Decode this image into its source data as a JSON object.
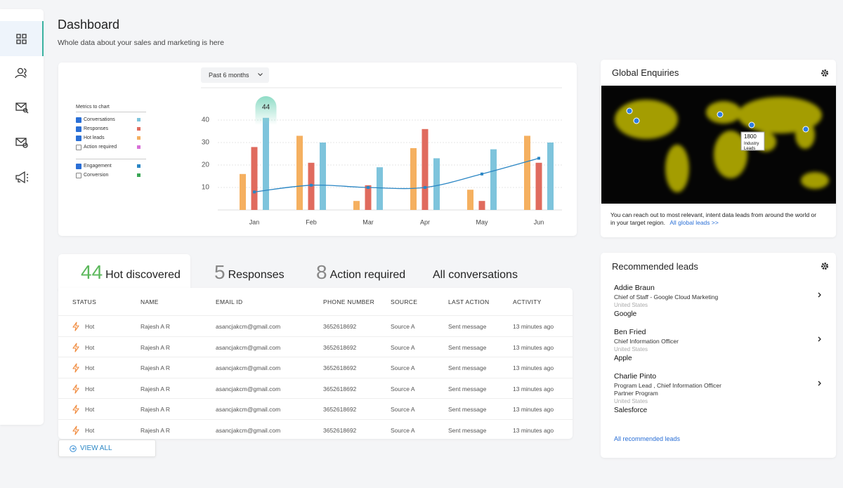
{
  "header": {
    "title": "Dashboard",
    "subtitle": "Whole data about your sales and marketing is here"
  },
  "chart_panel": {
    "period": "Past 6 months",
    "metrics_title": "Metrics to chart"
  },
  "chart_data": {
    "type": "bar",
    "categories": [
      "Jan",
      "Feb",
      "Mar",
      "Apr",
      "May",
      "Jun"
    ],
    "series": [
      {
        "name": "Conversations",
        "color": "#7ec4dc",
        "checked": true,
        "mark": "bar",
        "values": [
          41,
          30,
          19,
          23,
          27,
          30
        ]
      },
      {
        "name": "Responses",
        "color": "#e06b5e",
        "checked": true,
        "mark": "bar",
        "values": [
          28,
          21,
          11,
          36,
          4,
          21
        ]
      },
      {
        "name": "Hot leads",
        "color": "#f5b060",
        "checked": true,
        "mark": "bar",
        "values": [
          16,
          33,
          4,
          27.5,
          9,
          33
        ]
      },
      {
        "name": "Action required",
        "color": "#d86fd8",
        "checked": false
      },
      {
        "name": "Engagement",
        "color": "#2a86c4",
        "checked": true,
        "mark": "line",
        "values": [
          8,
          11,
          10,
          10,
          16,
          23
        ]
      },
      {
        "name": "Conversion",
        "color": "#3aa655",
        "checked": false
      }
    ],
    "annotation": "44",
    "ylim": [
      0,
      45
    ],
    "yticks": [
      10,
      20,
      30,
      40
    ],
    "grid": true
  },
  "map": {
    "title": "Global Enquiries",
    "tooltip_value": 1800,
    "tooltip_label": "Industry Leads",
    "description": "You can reach out to most relevant, intent data leads from around the world or in your target region.",
    "link": "All global leads >>"
  },
  "tabs": [
    {
      "count": 44,
      "label": "Hot discovered"
    },
    {
      "count": 5,
      "label": "Responses"
    },
    {
      "count": 8,
      "label": "Action required"
    },
    {
      "label": "All conversations"
    }
  ],
  "table": {
    "columns": [
      "STATUS",
      "NAME",
      "EMAIL ID",
      "PHONE NUMBER",
      "SOURCE",
      "LAST ACTION",
      "ACTIVITY"
    ],
    "rows": [
      [
        "Hot",
        "Rajesh A R",
        "asancjakcm@gmail.com",
        "3652618692",
        "Source A",
        "Sent message",
        "13 minutes ago"
      ],
      [
        "Hot",
        "Rajesh A R",
        "asancjakcm@gmail.com",
        "3652618692",
        "Source A",
        "Sent message",
        "13 minutes ago"
      ],
      [
        "Hot",
        "Rajesh A R",
        "asancjakcm@gmail.com",
        "3652618692",
        "Source A",
        "Sent message",
        "13 minutes ago"
      ],
      [
        "Hot",
        "Rajesh A R",
        "asancjakcm@gmail.com",
        "3652618692",
        "Source A",
        "Sent message",
        "13 minutes ago"
      ],
      [
        "Hot",
        "Rajesh A R",
        "asancjakcm@gmail.com",
        "3652618692",
        "Source A",
        "Sent message",
        "13 minutes ago"
      ],
      [
        "Hot",
        "Rajesh A R",
        "asancjakcm@gmail.com",
        "3652618692",
        "Source A",
        "Sent message",
        "13 minutes ago"
      ]
    ]
  },
  "view_all": "VIEW ALL",
  "leads": {
    "title": "Recommended leads",
    "items": [
      {
        "name": "Addie Braun",
        "title": [
          "Chief of Staff - Google Cloud Marketing"
        ],
        "country": "United States",
        "company": "Google"
      },
      {
        "name": "Ben Fried",
        "title": [
          "Chief Information Officer"
        ],
        "country": "United States",
        "company": "Apple"
      },
      {
        "name": "Charlie Pinto",
        "title": [
          "Program Lead , Chief Information Officer",
          "Partner Program"
        ],
        "country": "United States",
        "company": "Salesforce"
      }
    ],
    "link": "All recommended leads"
  }
}
